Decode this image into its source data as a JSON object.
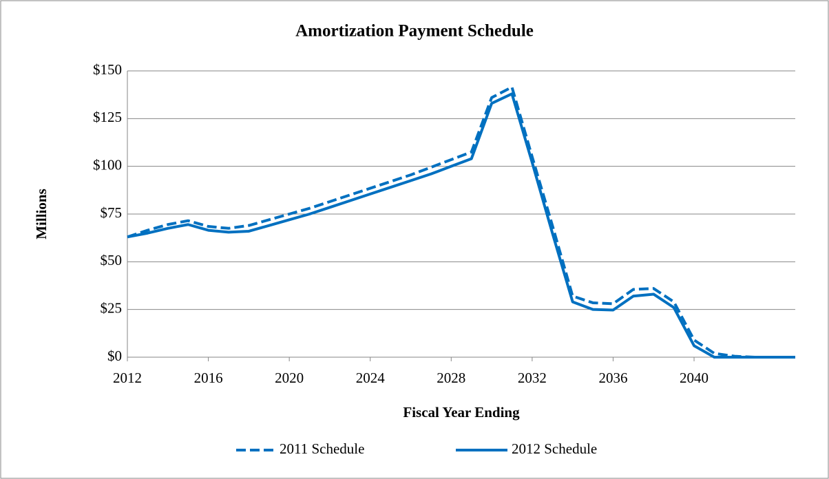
{
  "chart_data": {
    "type": "line",
    "title": "Amortization Payment Schedule",
    "x_label": "Fiscal Year Ending",
    "y_label": "Millions",
    "x": [
      2012,
      2013,
      2014,
      2015,
      2016,
      2017,
      2018,
      2019,
      2020,
      2021,
      2022,
      2023,
      2024,
      2025,
      2026,
      2027,
      2028,
      2029,
      2030,
      2031,
      2032,
      2033,
      2034,
      2035,
      2036,
      2037,
      2038,
      2039,
      2040,
      2041,
      2042,
      2043,
      2044,
      2045
    ],
    "series": [
      {
        "name": "2011 Schedule",
        "color": "#0070c0",
        "dash": true,
        "values": [
          63,
          66.5,
          69.5,
          71.5,
          68.5,
          67.5,
          69,
          72,
          75,
          78,
          81.5,
          85,
          88.5,
          92,
          95.5,
          99.5,
          103.5,
          107.5,
          136,
          141.5,
          105,
          69,
          32,
          28.5,
          28,
          35.5,
          36,
          29,
          9,
          2,
          0.5,
          0,
          0,
          0
        ]
      },
      {
        "name": "2012 Schedule",
        "color": "#0070c0",
        "dash": false,
        "values": [
          63,
          65,
          67.5,
          69.5,
          66.5,
          65.5,
          66,
          69,
          72,
          75,
          78.5,
          82,
          85.5,
          89,
          92.5,
          96,
          100,
          104,
          133,
          138,
          102,
          65,
          29,
          25,
          24.7,
          32,
          33,
          26,
          6,
          0,
          0,
          0,
          0,
          0
        ]
      }
    ],
    "xlim": [
      2012,
      2045
    ],
    "xticks": [
      2012,
      2016,
      2020,
      2024,
      2028,
      2032,
      2036,
      2040
    ],
    "ylim": [
      0,
      150
    ],
    "yticks": [
      {
        "value": 0,
        "label": "$0"
      },
      {
        "value": 25,
        "label": "$25"
      },
      {
        "value": 50,
        "label": "$50"
      },
      {
        "value": 75,
        "label": "$75"
      },
      {
        "value": 100,
        "label": "$100"
      },
      {
        "value": 125,
        "label": "$125"
      },
      {
        "value": 150,
        "label": "$150"
      }
    ],
    "grid": true,
    "legend": "bottom"
  }
}
